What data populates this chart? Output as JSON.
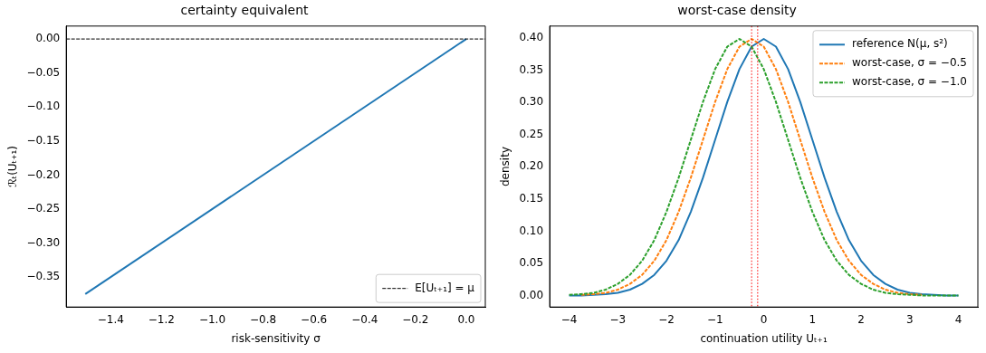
{
  "chart_data": [
    {
      "type": "line",
      "title": "certainty equivalent",
      "xlabel": "risk-sensitivity σ",
      "ylabel": "ℛₜ(Uₜ₊₁)",
      "x": [
        -1.5,
        0
      ],
      "series": [
        {
          "color": "#1f77b4",
          "values": [
            -0.375,
            0
          ],
          "line_style": "solid"
        }
      ],
      "xlim": [
        -1.575,
        0.075
      ],
      "xticks": [
        -1.4,
        -1.2,
        {
          "value": -1,
          "label": "−1.0"
        },
        -0.8,
        -0.6,
        -0.4,
        -0.2,
        {
          "value": 0,
          "label": "0.0"
        }
      ],
      "ylim": [
        -0.394,
        0.019
      ],
      "yticks": [
        -0.35,
        {
          "value": -0.3,
          "label": "−0.30"
        },
        -0.25,
        {
          "value": -0.2,
          "label": "−0.20"
        },
        -0.15,
        {
          "value": -0.1,
          "label": "−0.10"
        },
        -0.05,
        {
          "value": 0,
          "label": "0.00"
        }
      ],
      "ref_lines": [
        {
          "axis": "y",
          "value": 0,
          "label": "E[Uₜ₊₁] = μ",
          "color": "#000000",
          "line_style": "dashed"
        }
      ],
      "grid": false,
      "legend": "bottom right",
      "marker": "none"
    },
    {
      "type": "line",
      "title": "worst-case density",
      "xlabel": "continuation utility Uₜ₊₁",
      "ylabel": "density",
      "x": [
        -4,
        -3.75,
        -3.5,
        -3.25,
        -3,
        -2.75,
        -2.5,
        -2.25,
        -2,
        -1.75,
        -1.5,
        -1.25,
        -1,
        -0.75,
        -0.5,
        -0.25,
        0,
        0.25,
        0.5,
        0.75,
        1,
        1.25,
        1.5,
        1.75,
        2,
        2.25,
        2.5,
        2.75,
        3,
        3.25,
        3.5,
        3.75,
        4
      ],
      "series": [
        {
          "name": "reference N(μ, s²)",
          "color": "#1f77b4",
          "line_style": "solid",
          "values": [
            0,
            0,
            0.001,
            0.002,
            0.004,
            0.009,
            0.018,
            0.032,
            0.054,
            0.086,
            0.13,
            0.183,
            0.242,
            0.301,
            0.352,
            0.387,
            0.399,
            0.387,
            0.352,
            0.301,
            0.242,
            0.183,
            0.13,
            0.086,
            0.054,
            0.032,
            0.018,
            0.009,
            0.004,
            0.002,
            0.001,
            0,
            0
          ]
        },
        {
          "name": "worst-case, σ = −0.5",
          "color": "#ff7f0e",
          "line_style": "dashed",
          "values": [
            null,
            0.001,
            0.002,
            0.004,
            0.009,
            0.018,
            0.032,
            0.054,
            0.086,
            0.13,
            0.183,
            0.242,
            0.301,
            0.352,
            0.387,
            0.399,
            0.387,
            0.352,
            0.301,
            0.242,
            0.183,
            0.13,
            0.086,
            0.054,
            0.032,
            0.018,
            0.009,
            0.004,
            0.002,
            0.001,
            null,
            null,
            null
          ]
        },
        {
          "name": "worst-case, σ = −1.0",
          "color": "#2ca02c",
          "line_style": "dashed",
          "values": [
            0.001,
            0.002,
            0.004,
            0.009,
            0.018,
            0.032,
            0.054,
            0.086,
            0.13,
            0.183,
            0.242,
            0.301,
            0.352,
            0.387,
            0.399,
            0.387,
            0.352,
            0.301,
            0.242,
            0.183,
            0.13,
            0.086,
            0.054,
            0.032,
            0.018,
            0.009,
            0.004,
            0.002,
            0.001,
            0,
            0,
            0,
            0
          ]
        }
      ],
      "xlim": [
        -4.4,
        4.4
      ],
      "xticks": [
        -4,
        -3,
        -2,
        -1,
        0,
        1,
        2,
        3,
        4
      ],
      "ylim": [
        -0.018,
        0.419
      ],
      "yticks": [
        {
          "value": 0,
          "label": "0.00"
        },
        0.05,
        {
          "value": 0.1,
          "label": "0.10"
        },
        0.15,
        {
          "value": 0.2,
          "label": "0.20"
        },
        0.25,
        {
          "value": 0.3,
          "label": "0.30"
        },
        0.35,
        {
          "value": 0.4,
          "label": "0.40"
        }
      ],
      "ref_lines": [
        {
          "axis": "x",
          "value": -0.25,
          "color": "#ff0000",
          "line_style": "dotted"
        },
        {
          "axis": "x",
          "value": -0.125,
          "color": "#ff0000",
          "line_style": "dotted"
        }
      ],
      "grid": false,
      "legend": "top right",
      "marker": "none"
    }
  ]
}
